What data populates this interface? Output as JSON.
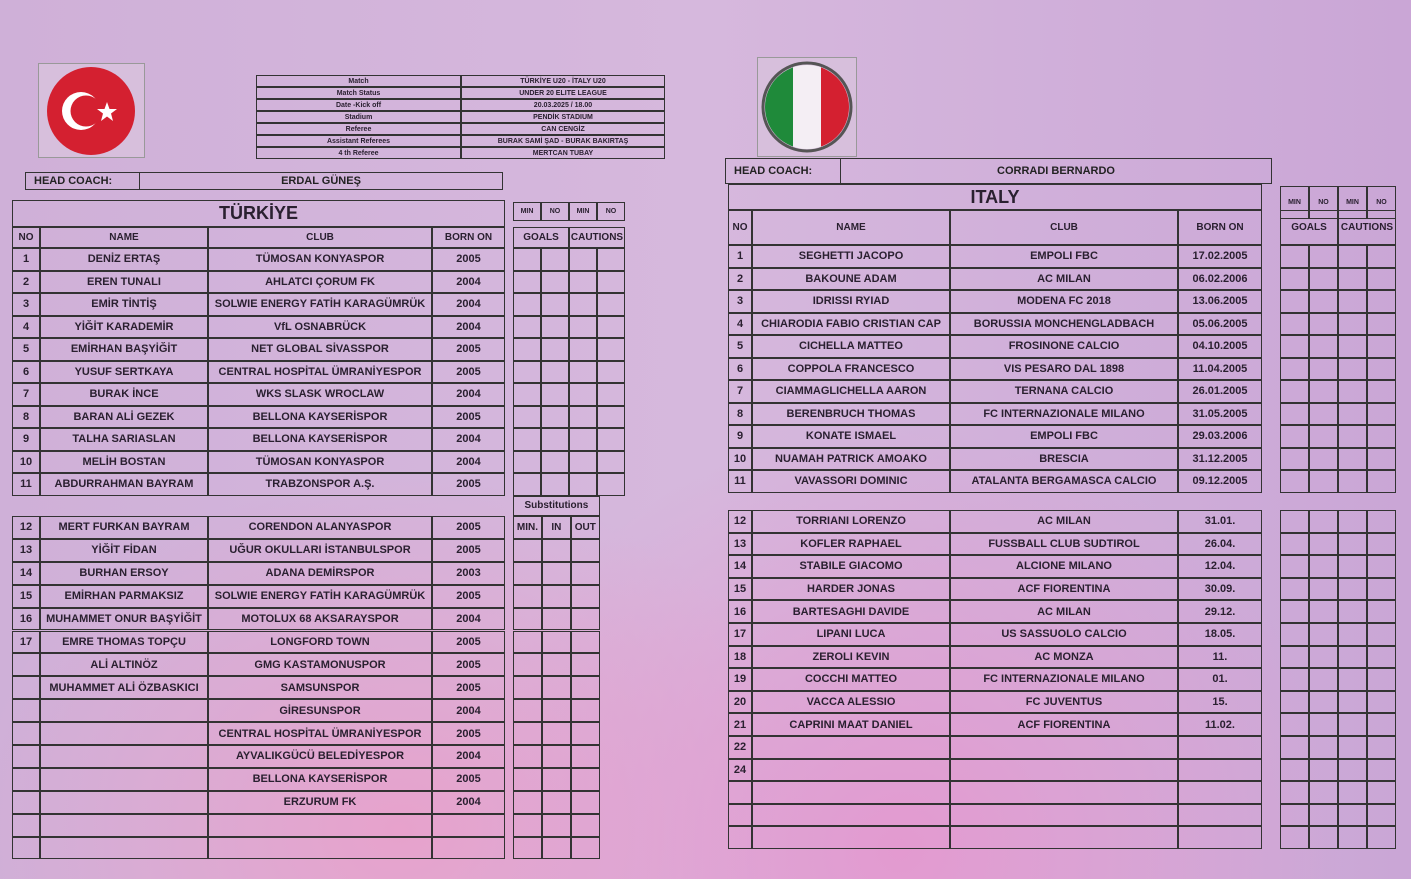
{
  "match_info": {
    "labels": [
      "Match",
      "Match Status",
      "Date -Kick off",
      "Stadium",
      "Referee",
      "Assistant Referees",
      "4 th Referee"
    ],
    "values": [
      "TÜRKİYE U20 - İTALY U20",
      "UNDER 20 ELITE LEAGUE",
      "20.03.2025 / 18.00",
      "PENDİK STADIUM",
      "CAN CENGİZ",
      "BURAK SAMİ ŞAD - BURAK BAKIRTAŞ",
      "MERTCAN TUBAY"
    ]
  },
  "turkey": {
    "flag": "turkey-flag",
    "head_coach_label": "HEAD COACH:",
    "head_coach": "ERDAL GÜNEŞ",
    "team": "TÜRKİYE",
    "columns": [
      "NO",
      "NAME",
      "CLUB",
      "BORN ON"
    ],
    "starters": [
      [
        "1",
        "DENİZ ERTAŞ",
        "TÜMOSAN KONYASPOR",
        "2005"
      ],
      [
        "2",
        "EREN TUNALI",
        "AHLATCI ÇORUM FK",
        "2004"
      ],
      [
        "3",
        "EMİR TİNTİŞ",
        "SOLWIE ENERGY FATİH KARAGÜMRÜK",
        "2004"
      ],
      [
        "4",
        "YİĞİT KARADEMİR",
        "VfL OSNABRÜCK",
        "2004"
      ],
      [
        "5",
        "EMİRHAN BAŞYİĞİT",
        "NET GLOBAL SİVASSPOR",
        "2005"
      ],
      [
        "6",
        "YUSUF SERTKAYA",
        "CENTRAL HOSPİTAL ÜMRANİYESPOR",
        "2005"
      ],
      [
        "7",
        "BURAK İNCE",
        "WKS SLASK WROCLAW",
        "2004"
      ],
      [
        "8",
        "BARAN ALİ GEZEK",
        "BELLONA KAYSERİSPOR",
        "2005"
      ],
      [
        "9",
        "TALHA SARIASLAN",
        "BELLONA KAYSERİSPOR",
        "2004"
      ],
      [
        "10",
        "MELİH BOSTAN",
        "TÜMOSAN KONYASPOR",
        "2004"
      ],
      [
        "11",
        "ABDURRAHMAN BAYRAM",
        "TRABZONSPOR A.Ş.",
        "2005"
      ]
    ],
    "substitutes": [
      [
        "12",
        "MERT FURKAN BAYRAM",
        "CORENDON ALANYASPOR",
        "2005"
      ],
      [
        "13",
        "YİĞİT FİDAN",
        "UĞUR OKULLARI İSTANBULSPOR",
        "2005"
      ],
      [
        "14",
        "BURHAN ERSOY",
        "ADANA DEMİRSPOR",
        "2003"
      ],
      [
        "15",
        "EMİRHAN PARMAKSIZ",
        "SOLWIE ENERGY FATİH KARAGÜMRÜK",
        "2005"
      ],
      [
        "16",
        "MUHAMMET ONUR BAŞYİĞİT",
        "MOTOLUX 68 AKSARAYSPOR",
        "2004"
      ],
      [
        "17",
        "EMRE THOMAS TOPÇU",
        "LONGFORD TOWN",
        "2005"
      ],
      [
        "",
        "ALİ ALTINÖZ",
        "GMG KASTAMONUSPOR",
        "2005"
      ],
      [
        "",
        "MUHAMMET ALİ ÖZBASKICI",
        "SAMSUNSPOR",
        "2005"
      ],
      [
        "",
        "",
        "GİRESUNSPOR",
        "2004"
      ],
      [
        "",
        "",
        "CENTRAL HOSPİTAL ÜMRANİYESPOR",
        "2005"
      ],
      [
        "",
        "",
        "AYVALIKGÜCÜ BELEDİYESPOR",
        "2004"
      ],
      [
        "",
        "",
        "BELLONA KAYSERİSPOR",
        "2005"
      ],
      [
        "",
        "",
        "ERZURUM FK",
        "2004"
      ],
      [
        "",
        "",
        "",
        ""
      ],
      [
        "",
        "",
        "",
        ""
      ]
    ],
    "stats_top": [
      "MIN",
      "NO",
      "MIN",
      "NO"
    ],
    "stats_groups": [
      "GOALS",
      "CAUTIONS"
    ],
    "subs_title": "Substitutions",
    "subs_cols": [
      "MIN.",
      "IN",
      "OUT"
    ]
  },
  "italy": {
    "flag": "italy-flag",
    "head_coach_label": "HEAD COACH:",
    "head_coach": "CORRADI BERNARDO",
    "team": "ITALY",
    "columns": [
      "NO",
      "NAME",
      "CLUB",
      "BORN ON"
    ],
    "starters": [
      [
        "1",
        "SEGHETTI JACOPO",
        "EMPOLI FBC",
        "17.02.2005"
      ],
      [
        "2",
        "BAKOUNE ADAM",
        "AC MILAN",
        "06.02.2006"
      ],
      [
        "3",
        "IDRISSI RYIAD",
        "MODENA FC 2018",
        "13.06.2005"
      ],
      [
        "4",
        "CHIARODIA FABIO CRISTIAN CAP",
        "BORUSSIA MONCHENGLADBACH",
        "05.06.2005"
      ],
      [
        "5",
        "CICHELLA MATTEO",
        "FROSINONE CALCIO",
        "04.10.2005"
      ],
      [
        "6",
        "COPPOLA FRANCESCO",
        "VIS PESARO DAL 1898",
        "11.04.2005"
      ],
      [
        "7",
        "CIAMMAGLICHELLA AARON",
        "TERNANA CALCIO",
        "26.01.2005"
      ],
      [
        "8",
        "BERENBRUCH THOMAS",
        "FC INTERNAZIONALE MILANO",
        "31.05.2005"
      ],
      [
        "9",
        "KONATE ISMAEL",
        "EMPOLI FBC",
        "29.03.2006"
      ],
      [
        "10",
        "NUAMAH PATRICK AMOAKO",
        "BRESCIA",
        "31.12.2005"
      ],
      [
        "11",
        "VAVASSORI DOMINIC",
        "ATALANTA BERGAMASCA CALCIO",
        "09.12.2005"
      ]
    ],
    "substitutes": [
      [
        "12",
        "TORRIANI LORENZO",
        "AC MILAN",
        "31.01."
      ],
      [
        "13",
        "KOFLER RAPHAEL",
        "FUSSBALL CLUB SUDTIROL",
        "26.04."
      ],
      [
        "14",
        "STABILE GIACOMO",
        "ALCIONE MILANO",
        "12.04."
      ],
      [
        "15",
        "HARDER JONAS",
        "ACF FIORENTINA",
        "30.09."
      ],
      [
        "16",
        "BARTESAGHI DAVIDE",
        "AC MILAN",
        "29.12."
      ],
      [
        "17",
        "LIPANI LUCA",
        "US SASSUOLO CALCIO",
        "18.05."
      ],
      [
        "18",
        "ZEROLI KEVIN",
        "AC MONZA",
        "11."
      ],
      [
        "19",
        "COCCHI MATTEO",
        "FC INTERNAZIONALE MILANO",
        "01."
      ],
      [
        "20",
        "VACCA ALESSIO",
        "FC JUVENTUS",
        "15."
      ],
      [
        "21",
        "CAPRINI MAAT DANIEL",
        "ACF FIORENTINA",
        "11.02."
      ],
      [
        "22",
        "",
        "",
        ""
      ],
      [
        "24",
        "",
        "",
        ""
      ],
      [
        "",
        "",
        "",
        ""
      ],
      [
        "",
        "",
        "",
        ""
      ],
      [
        "",
        "",
        "",
        ""
      ]
    ],
    "stats_top": [
      "MIN",
      "NO",
      "MIN",
      "NO"
    ],
    "stats_groups": [
      "GOALS",
      "CAUTIONS"
    ]
  }
}
